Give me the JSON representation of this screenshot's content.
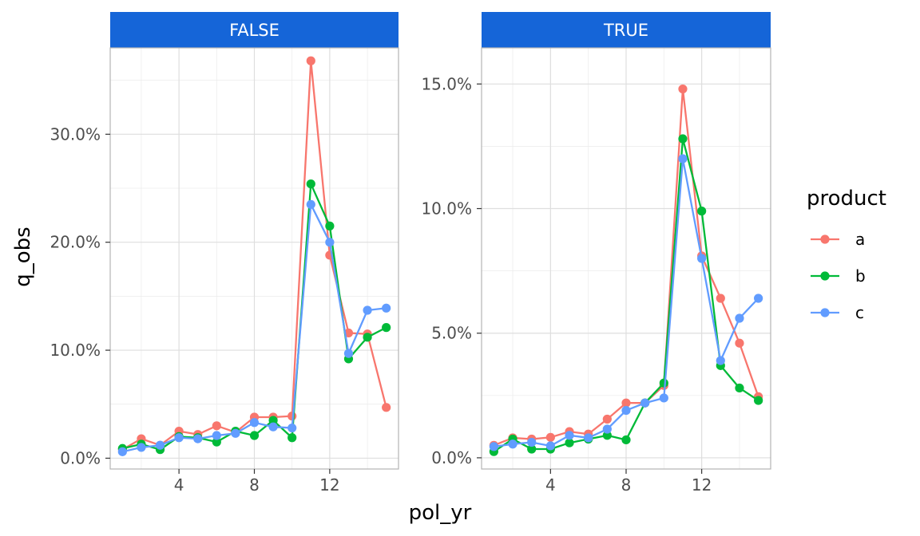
{
  "chart_data": {
    "type": "line",
    "xlabel": "pol_yr",
    "ylabel": "q_obs",
    "x": [
      1,
      2,
      3,
      4,
      5,
      6,
      7,
      8,
      9,
      10,
      11,
      12,
      13,
      14,
      15
    ],
    "x_ticks": [
      4,
      8,
      12
    ],
    "x_tick_labels": [
      "4",
      "8",
      "12"
    ],
    "xlim": [
      0.35,
      15.65
    ],
    "grid": true,
    "legend": {
      "title": "product",
      "position": "right",
      "entries": [
        {
          "label": "a",
          "color": "#F8766D"
        },
        {
          "label": "b",
          "color": "#00BA38"
        },
        {
          "label": "c",
          "color": "#619CFF"
        }
      ]
    },
    "strip_color": "#1565D8",
    "facets": [
      {
        "label": "FALSE",
        "ylim": [
          -0.01,
          0.38
        ],
        "y_ticks": [
          0,
          0.1,
          0.2,
          0.3
        ],
        "y_tick_labels": [
          "0.0%",
          "10.0%",
          "20.0%",
          "30.0%"
        ],
        "series": [
          {
            "name": "a",
            "color": "#F8766D",
            "values": [
              0.008,
              0.018,
              0.012,
              0.025,
              0.022,
              0.03,
              0.024,
              0.038,
              0.038,
              0.039,
              0.368,
              0.188,
              0.116,
              0.115,
              0.047
            ]
          },
          {
            "name": "b",
            "color": "#00BA38",
            "values": [
              0.009,
              0.013,
              0.008,
              0.02,
              0.019,
              0.015,
              0.025,
              0.021,
              0.035,
              0.019,
              0.254,
              0.215,
              0.092,
              0.112,
              0.121
            ]
          },
          {
            "name": "c",
            "color": "#619CFF",
            "values": [
              0.006,
              0.01,
              0.012,
              0.019,
              0.018,
              0.021,
              0.023,
              0.033,
              0.029,
              0.028,
              0.235,
              0.2,
              0.097,
              0.137,
              0.139
            ]
          }
        ]
      },
      {
        "label": "TRUE",
        "ylim": [
          -0.0045,
          0.1645
        ],
        "y_ticks": [
          0,
          0.05,
          0.1,
          0.15
        ],
        "y_tick_labels": [
          "0.0%",
          "5.0%",
          "10.0%",
          "15.0%"
        ],
        "series": [
          {
            "name": "a",
            "color": "#F8766D",
            "values": [
              0.005,
              0.008,
              0.0075,
              0.0082,
              0.0105,
              0.0095,
              0.0155,
              0.022,
              0.022,
              0.029,
              0.148,
              0.081,
              0.064,
              0.046,
              0.0245
            ]
          },
          {
            "name": "b",
            "color": "#00BA38",
            "values": [
              0.0025,
              0.0075,
              0.0035,
              0.0035,
              0.006,
              0.0075,
              0.009,
              0.0072,
              0.022,
              0.03,
              0.128,
              0.099,
              0.037,
              0.028,
              0.023
            ]
          },
          {
            "name": "c",
            "color": "#619CFF",
            "values": [
              0.0045,
              0.0055,
              0.0062,
              0.0048,
              0.009,
              0.008,
              0.0115,
              0.019,
              0.022,
              0.024,
              0.12,
              0.08,
              0.039,
              0.056,
              0.064
            ]
          }
        ]
      }
    ]
  }
}
